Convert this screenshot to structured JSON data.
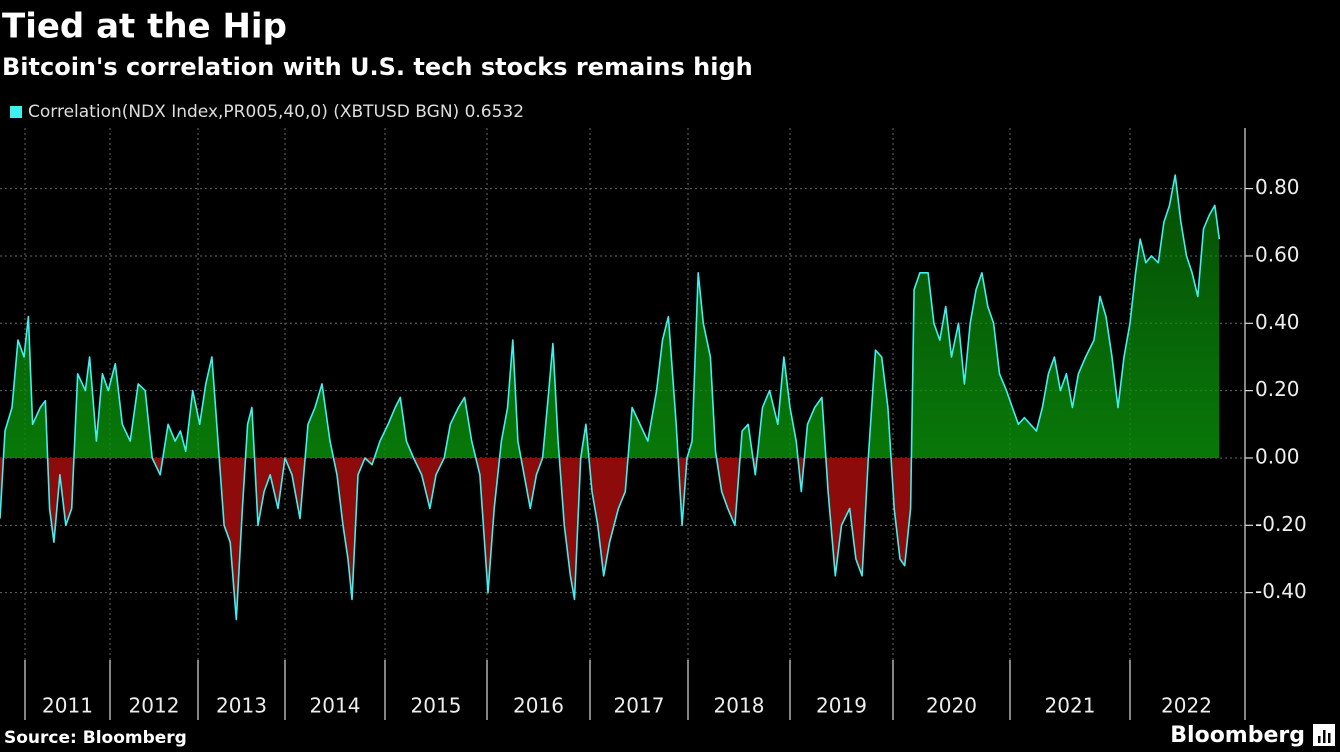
{
  "chart_data": {
    "type": "area",
    "title": "Tied at the Hip",
    "subtitle": "Bitcoin's correlation with U.S. tech stocks remains high",
    "source": "Source: Bloomberg",
    "brand": "Bloomberg",
    "xlim": [
      2010.75,
      2023
    ],
    "xticks": [
      {
        "value": 2011,
        "label": "2011"
      },
      {
        "value": 2012,
        "label": "2012"
      },
      {
        "value": 2013,
        "label": "2013"
      },
      {
        "value": 2014,
        "label": "2014"
      },
      {
        "value": 2015,
        "label": "2015"
      },
      {
        "value": 2016,
        "label": "2016"
      },
      {
        "value": 2017,
        "label": "2017"
      },
      {
        "value": 2018,
        "label": "2018"
      },
      {
        "value": 2019,
        "label": "2019"
      },
      {
        "value": 2020,
        "label": "2020"
      },
      {
        "value": 2021,
        "label": "2021"
      },
      {
        "value": 2022,
        "label": "2022"
      }
    ],
    "ylim": [
      -0.6,
      0.98
    ],
    "yticks": [
      {
        "value": -0.4,
        "label": "-0.40"
      },
      {
        "value": -0.2,
        "label": "-0.20"
      },
      {
        "value": 0,
        "label": "0.00"
      },
      {
        "value": 0.2,
        "label": "0.20"
      },
      {
        "value": 0.4,
        "label": "0.40"
      },
      {
        "value": 0.6,
        "label": "0.60"
      },
      {
        "value": 0.8,
        "label": "0.80"
      }
    ],
    "grid": true,
    "positive_color": "#0a8f0a",
    "negative_color": "#8e0b0b",
    "series": [
      {
        "name": "Correlation(NDX Index,PR005,40,0) (XBTUSD BGN) 0.6532",
        "color": "#3ff0f0",
        "x": [
          2010.75,
          2010.8,
          2010.87,
          2010.93,
          2010.99,
          2011.04,
          2011.09,
          2011.18,
          2011.24,
          2011.29,
          2011.34,
          2011.41,
          2011.48,
          2011.55,
          2011.62,
          2011.71,
          2011.76,
          2011.84,
          2011.91,
          2011.98,
          2012.06,
          2012.14,
          2012.23,
          2012.32,
          2012.4,
          2012.48,
          2012.57,
          2012.66,
          2012.74,
          2012.8,
          2012.86,
          2012.94,
          2013.02,
          2013.09,
          2013.16,
          2013.23,
          2013.3,
          2013.37,
          2013.44,
          2013.51,
          2013.57,
          2013.62,
          2013.69,
          2013.76,
          2013.83,
          2013.92,
          2014.0,
          2014.07,
          2014.15,
          2014.23,
          2014.3,
          2014.37,
          2014.45,
          2014.52,
          2014.58,
          2014.63,
          2014.67,
          2014.73,
          2014.8,
          2014.87,
          2014.95,
          2015.03,
          2015.1,
          2015.15,
          2015.21,
          2015.28,
          2015.36,
          2015.44,
          2015.5,
          2015.58,
          2015.64,
          2015.72,
          2015.78,
          2015.85,
          2015.93,
          2016.01,
          2016.07,
          2016.14,
          2016.2,
          2016.25,
          2016.3,
          2016.36,
          2016.42,
          2016.48,
          2016.54,
          2016.6,
          2016.64,
          2016.69,
          2016.75,
          2016.81,
          2016.85,
          2016.91,
          2016.96,
          2017.02,
          2017.08,
          2017.14,
          2017.2,
          2017.29,
          2017.36,
          2017.43,
          2017.51,
          2017.59,
          2017.68,
          2017.74,
          2017.8,
          2017.88,
          2017.94,
          2017.99,
          2018.04,
          2018.1,
          2018.15,
          2018.22,
          2018.27,
          2018.33,
          2018.39,
          2018.46,
          2018.53,
          2018.59,
          2018.66,
          2018.73,
          2018.8,
          2018.88,
          2018.94,
          2019.0,
          2019.06,
          2019.11,
          2019.17,
          2019.24,
          2019.31,
          2019.37,
          2019.44,
          2019.5,
          2019.58,
          2019.64,
          2019.7,
          2019.76,
          2019.83,
          2019.89,
          2019.95,
          2020.01,
          2020.06,
          2020.1,
          2020.15,
          2020.18,
          2020.23,
          2020.3,
          2020.35,
          2020.4,
          2020.45,
          2020.5,
          2020.56,
          2020.61,
          2020.66,
          2020.71,
          2020.76,
          2020.81,
          2020.86,
          2020.91,
          2020.97,
          2021.02,
          2021.07,
          2021.12,
          2021.17,
          2021.22,
          2021.27,
          2021.32,
          2021.37,
          2021.42,
          2021.47,
          2021.52,
          2021.57,
          2021.63,
          2021.7,
          2021.75,
          2021.8,
          2021.85,
          2021.9,
          2021.95,
          2022.0,
          2022.05,
          2022.09,
          2022.14,
          2022.19,
          2022.25,
          2022.3,
          2022.35,
          2022.4,
          2022.45,
          2022.5,
          2022.55,
          2022.6,
          2022.65,
          2022.7,
          2022.75,
          2022.79
        ],
        "values": [
          -0.18,
          0.08,
          0.15,
          0.35,
          0.3,
          0.42,
          0.1,
          0.15,
          0.17,
          -0.15,
          -0.25,
          -0.05,
          -0.2,
          -0.15,
          0.25,
          0.2,
          0.3,
          0.05,
          0.25,
          0.2,
          0.28,
          0.1,
          0.05,
          0.22,
          0.2,
          0.0,
          -0.05,
          0.1,
          0.05,
          0.08,
          0.02,
          0.2,
          0.1,
          0.22,
          0.3,
          0.05,
          -0.2,
          -0.25,
          -0.48,
          -0.15,
          0.1,
          0.15,
          -0.2,
          -0.1,
          -0.05,
          -0.15,
          0.0,
          -0.05,
          -0.18,
          0.1,
          0.15,
          0.22,
          0.05,
          -0.05,
          -0.2,
          -0.3,
          -0.42,
          -0.05,
          0.0,
          -0.02,
          0.05,
          0.1,
          0.15,
          0.18,
          0.05,
          0.0,
          -0.05,
          -0.15,
          -0.05,
          0.0,
          0.1,
          0.15,
          0.18,
          0.05,
          -0.05,
          -0.4,
          -0.15,
          0.05,
          0.15,
          0.35,
          0.05,
          -0.05,
          -0.15,
          -0.05,
          0.0,
          0.2,
          0.34,
          0.05,
          -0.2,
          -0.35,
          -0.42,
          0.0,
          0.1,
          -0.1,
          -0.2,
          -0.35,
          -0.25,
          -0.15,
          -0.1,
          0.15,
          0.1,
          0.05,
          0.2,
          0.35,
          0.42,
          0.1,
          -0.2,
          0.0,
          0.05,
          0.55,
          0.4,
          0.3,
          0.02,
          -0.1,
          -0.15,
          -0.2,
          0.08,
          0.1,
          -0.05,
          0.15,
          0.2,
          0.1,
          0.3,
          0.15,
          0.05,
          -0.1,
          0.1,
          0.15,
          0.18,
          -0.1,
          -0.35,
          -0.2,
          -0.15,
          -0.3,
          -0.35,
          0.0,
          0.32,
          0.3,
          0.15,
          -0.15,
          -0.3,
          -0.32,
          -0.15,
          0.5,
          0.55,
          0.55,
          0.4,
          0.35,
          0.45,
          0.3,
          0.4,
          0.22,
          0.4,
          0.5,
          0.55,
          0.45,
          0.4,
          0.25,
          0.2,
          0.15,
          0.1,
          0.12,
          0.1,
          0.08,
          0.15,
          0.25,
          0.3,
          0.2,
          0.25,
          0.15,
          0.25,
          0.3,
          0.35,
          0.48,
          0.42,
          0.3,
          0.15,
          0.3,
          0.4,
          0.55,
          0.65,
          0.58,
          0.6,
          0.58,
          0.7,
          0.75,
          0.84,
          0.7,
          0.6,
          0.55,
          0.48,
          0.68,
          0.72,
          0.75,
          0.65
        ]
      }
    ]
  }
}
